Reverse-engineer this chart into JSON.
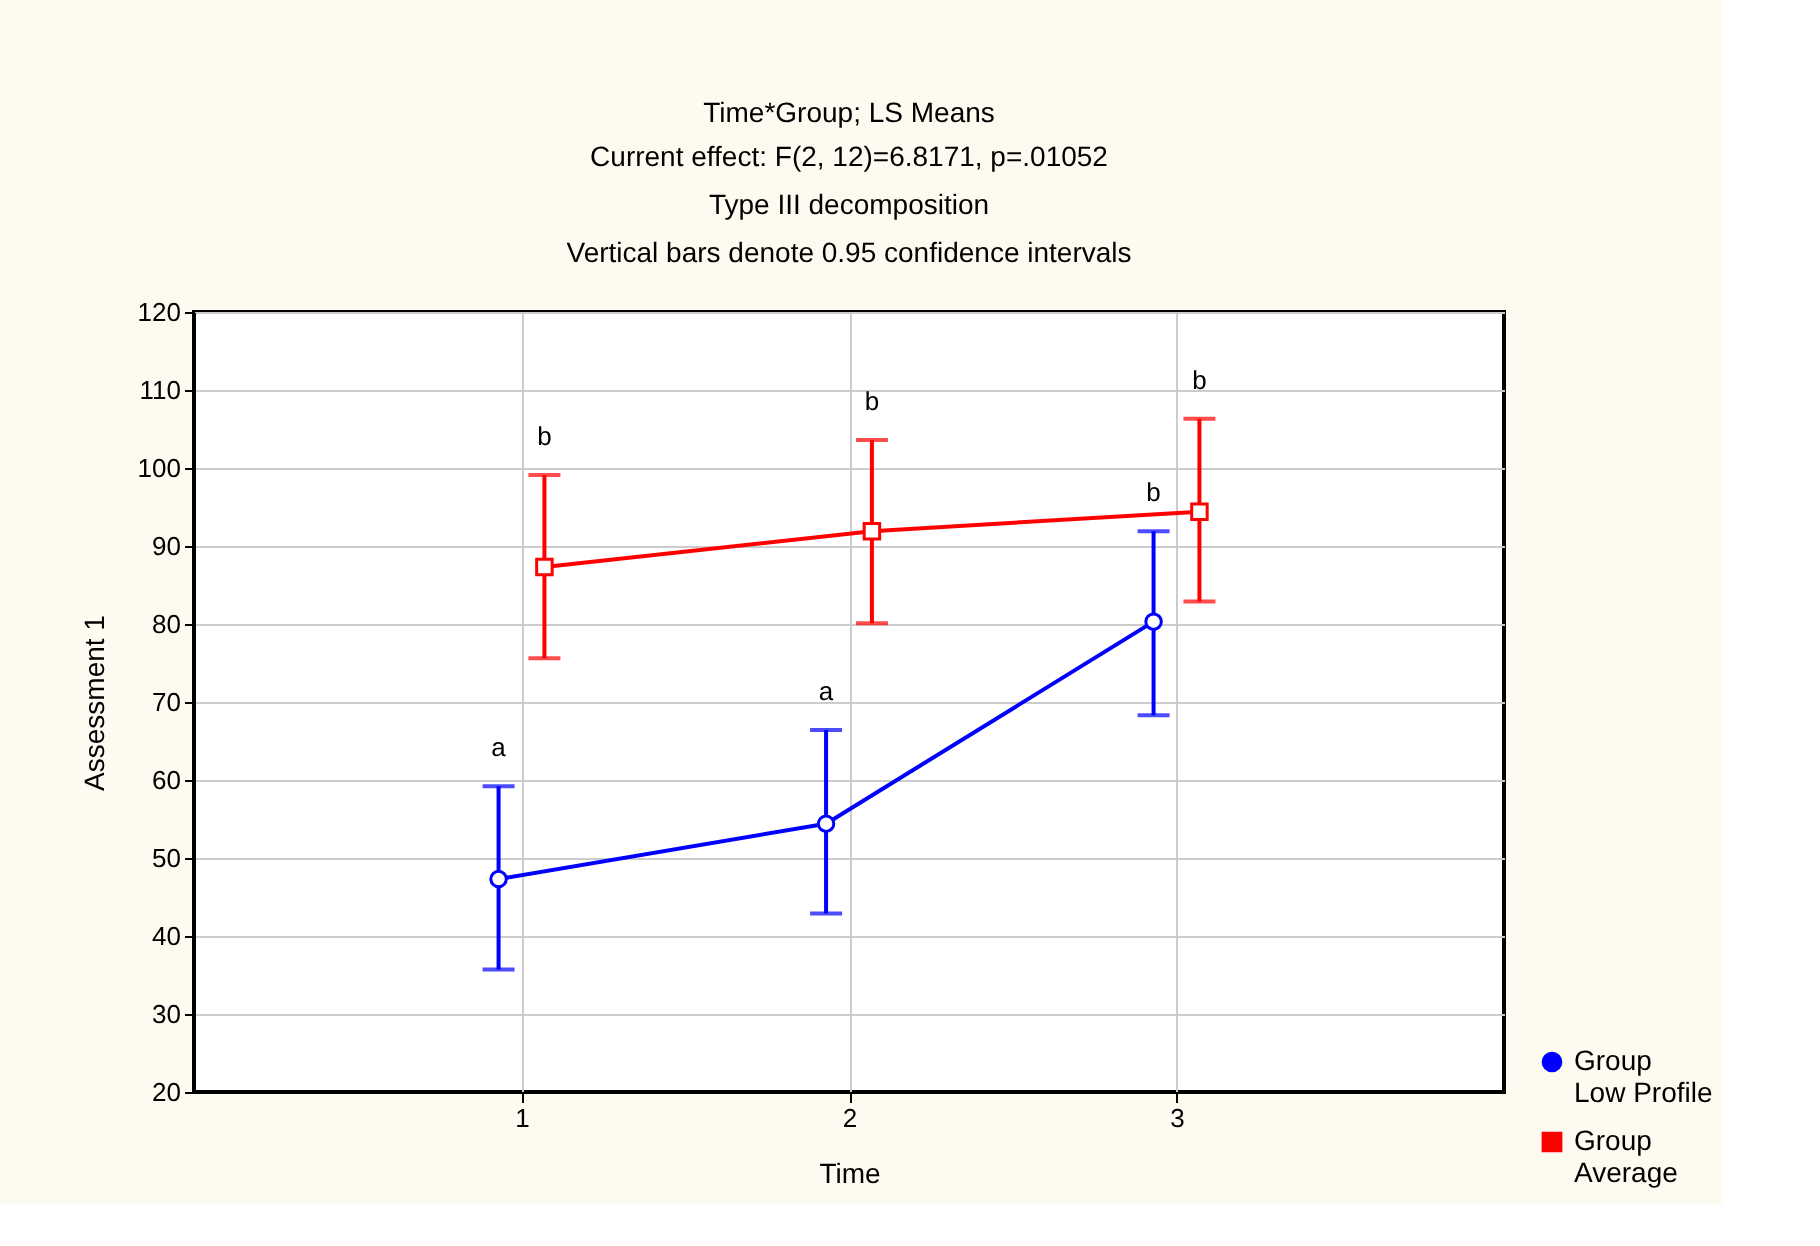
{
  "chart_data": {
    "type": "line",
    "title": "Time*Group; LS Means",
    "subtitle": "Current effect: F(2, 12)=6.8171, p=.01052\nType III decomposition\nVertical bars denote 0.95 confidence intervals",
    "xlabel": "Time",
    "ylabel": "Assessment 1",
    "xlim": [
      0,
      4
    ],
    "xticks": [
      {
        "value": 1,
        "label": "1"
      },
      {
        "value": 2,
        "label": "2"
      },
      {
        "value": 3,
        "label": "3"
      }
    ],
    "ylim": [
      20,
      120
    ],
    "yticks": [
      20,
      30,
      40,
      50,
      60,
      70,
      80,
      90,
      100,
      110,
      120
    ],
    "grid": true,
    "legend": "bottom right",
    "line_style": "solid",
    "series": [
      {
        "name": "Group Low Profile",
        "color": "#0000ff",
        "marker": "circle",
        "x": [
          0.93,
          1.93,
          2.93
        ],
        "values": [
          47.3,
          54.4,
          80.3
        ],
        "errors": [
          [
            35.7,
            59.2
          ],
          [
            42.9,
            66.4
          ],
          [
            68.3,
            91.9
          ]
        ]
      },
      {
        "name": "Group Average",
        "color": "#ff0000",
        "marker": "square",
        "x": [
          1.07,
          2.07,
          3.07
        ],
        "values": [
          87.3,
          91.9,
          94.4
        ],
        "errors": [
          [
            75.6,
            99.1
          ],
          [
            80.1,
            103.6
          ],
          [
            82.9,
            106.3
          ]
        ]
      }
    ],
    "annotations": [
      {
        "text": "a",
        "x": 0.93,
        "y": 59.2
      },
      {
        "text": "a",
        "x": 1.93,
        "y": 66.4
      },
      {
        "text": "b",
        "x": 2.93,
        "y": 91.9
      },
      {
        "text": "b",
        "x": 1.07,
        "y": 99.1
      },
      {
        "text": "b",
        "x": 2.07,
        "y": 103.6
      },
      {
        "text": "b",
        "x": 3.07,
        "y": 106.3
      }
    ]
  }
}
